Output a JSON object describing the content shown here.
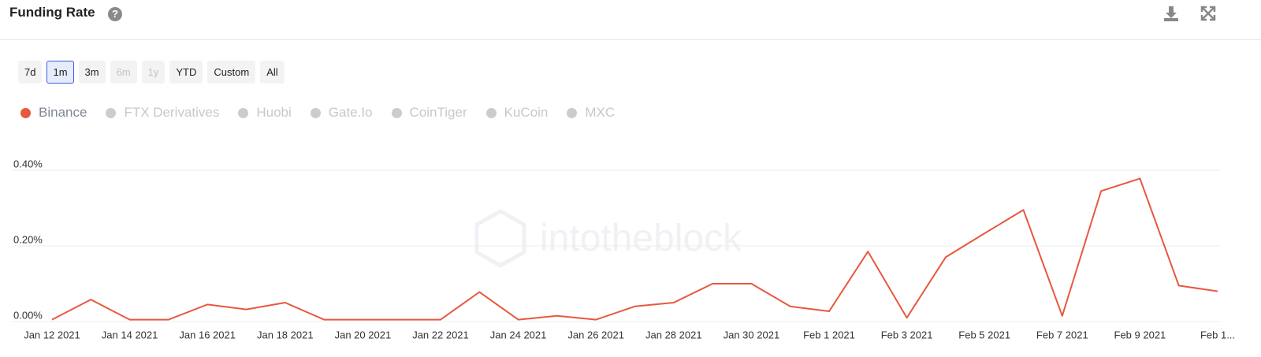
{
  "header": {
    "title": "Funding Rate"
  },
  "range_buttons": [
    {
      "label": "7d",
      "state": "normal"
    },
    {
      "label": "1m",
      "state": "selected"
    },
    {
      "label": "3m",
      "state": "normal"
    },
    {
      "label": "6m",
      "state": "disabled"
    },
    {
      "label": "1y",
      "state": "disabled"
    },
    {
      "label": "YTD",
      "state": "normal"
    },
    {
      "label": "Custom",
      "state": "normal"
    },
    {
      "label": "All",
      "state": "normal"
    }
  ],
  "chart_data": {
    "type": "line",
    "watermark": "intotheblock",
    "categories": [
      "Jan 12 2021",
      null,
      "Jan 14 2021",
      null,
      "Jan 16 2021",
      null,
      "Jan 18 2021",
      null,
      "Jan 20 2021",
      null,
      "Jan 22 2021",
      null,
      "Jan 24 2021",
      null,
      "Jan 26 2021",
      null,
      "Jan 28 2021",
      null,
      "Jan 30 2021",
      null,
      "Feb 1 2021",
      null,
      "Feb 3 2021",
      null,
      "Feb 5 2021",
      null,
      "Feb 7 2021",
      null,
      "Feb 9 2021",
      null,
      "Feb 1..."
    ],
    "series": [
      {
        "name": "Binance",
        "color": "#e8583f",
        "visible": true,
        "values": [
          0.005,
          0.058,
          0.005,
          0.005,
          0.045,
          0.032,
          0.05,
          0.005,
          0.005,
          0.005,
          0.005,
          0.078,
          0.005,
          0.015,
          0.005,
          0.04,
          0.05,
          0.1,
          0.1,
          0.04,
          0.027,
          0.185,
          0.01,
          0.17,
          0.233,
          0.295,
          0.015,
          0.345,
          0.378,
          0.095,
          0.08
        ]
      },
      {
        "name": "FTX Derivatives",
        "color": "#cccccc",
        "visible": false
      },
      {
        "name": "Huobi",
        "color": "#cccccc",
        "visible": false
      },
      {
        "name": "Gate.Io",
        "color": "#cccccc",
        "visible": false
      },
      {
        "name": "CoinTiger",
        "color": "#cccccc",
        "visible": false
      },
      {
        "name": "KuCoin",
        "color": "#cccccc",
        "visible": false
      },
      {
        "name": "MXC",
        "color": "#cccccc",
        "visible": false
      }
    ],
    "ylim": [
      0,
      0.4
    ],
    "yticks": [
      {
        "value": 0,
        "label": "0.00%"
      },
      {
        "value": 0.2,
        "label": "0.20%"
      },
      {
        "value": 0.4,
        "label": "0.40%"
      }
    ],
    "grid": true
  }
}
